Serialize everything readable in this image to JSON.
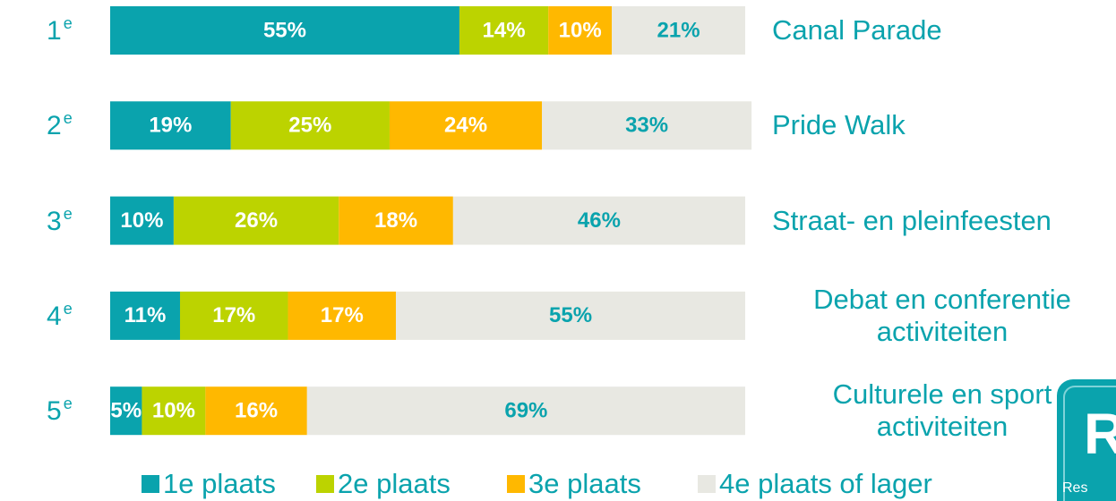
{
  "chart_data": {
    "type": "stacked-barh",
    "categories": [
      "1e",
      "2e",
      "3e",
      "4e",
      "5e"
    ],
    "items": [
      "Canal Parade",
      "Pride Walk",
      "Straat- en pleinfeesten",
      "Debat en conferentie activiteiten",
      "Culturele en sport activiteiten"
    ],
    "xlim": [
      0,
      100
    ],
    "series": [
      {
        "name": "1e plaats",
        "color": "#0aa3ad",
        "label_color": "#ffffff",
        "values": [
          55,
          19,
          10,
          11,
          5
        ],
        "value_labels": [
          "55%",
          "19%",
          "10%",
          "11%",
          "5%"
        ]
      },
      {
        "name": "2e plaats",
        "color": "#bcd300",
        "label_color": "#ffffff",
        "values": [
          14,
          25,
          26,
          17,
          10
        ],
        "value_labels": [
          "14%",
          "25%",
          "26%",
          "17%",
          "10%"
        ]
      },
      {
        "name": "3e plaats",
        "color": "#ffb800",
        "label_color": "#ffffff",
        "values": [
          10,
          24,
          18,
          17,
          16
        ],
        "value_labels": [
          "10%",
          "24%",
          "18%",
          "17%",
          "16%"
        ]
      },
      {
        "name": "4e plaats of lager",
        "color": "#e8e8e2",
        "label_color": "#0aa3ad",
        "values": [
          21,
          33,
          46,
          55,
          69
        ],
        "value_labels": [
          "21%",
          "33%",
          "46%",
          "55%",
          "69%"
        ]
      }
    ],
    "legend": "bottom",
    "logo": {
      "letter": "R",
      "text": "Res"
    }
  }
}
